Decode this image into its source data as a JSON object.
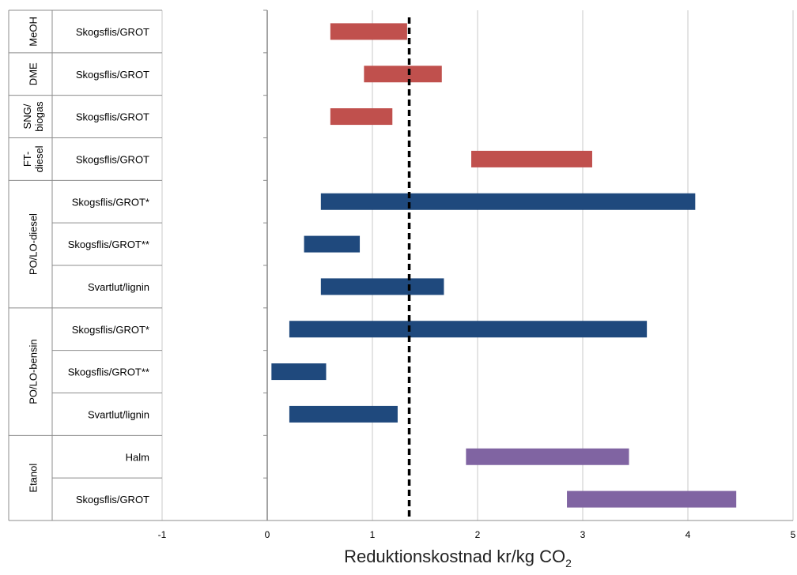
{
  "chart_data": {
    "type": "bar",
    "orientation": "horizontal-range",
    "xlabel": "Reduktionskostnad kr/kg CO",
    "xlabel_subscript": "2",
    "xlim": [
      -1,
      5
    ],
    "xticks": [
      "-1",
      "0",
      "1",
      "2",
      "3",
      "4",
      "5"
    ],
    "grid": "vertical",
    "reference_line": {
      "x": 1.35,
      "style": "dashed",
      "color": "#000000"
    },
    "groups": [
      {
        "lines": [
          "MeOH"
        ],
        "rows": [
          0
        ]
      },
      {
        "lines": [
          "DME"
        ],
        "rows": [
          1
        ]
      },
      {
        "lines": [
          "SNG/",
          "biogas"
        ],
        "rows": [
          2
        ]
      },
      {
        "lines": [
          "FT-",
          "diesel"
        ],
        "rows": [
          3
        ]
      },
      {
        "lines": [
          "PO/LO-diesel"
        ],
        "rows": [
          4,
          5,
          6
        ]
      },
      {
        "lines": [
          "PO/LO-bensin"
        ],
        "rows": [
          7,
          8,
          9
        ]
      },
      {
        "lines": [
          "Etanol"
        ],
        "rows": [
          10,
          11
        ]
      }
    ],
    "rows": [
      {
        "label": "Skogsflis/GROT",
        "low": 0.6,
        "high": 1.33,
        "color": "#c0504d"
      },
      {
        "label": "Skogsflis/GROT",
        "low": 0.92,
        "high": 1.66,
        "color": "#c0504d"
      },
      {
        "label": "Skogsflis/GROT",
        "low": 0.6,
        "high": 1.19,
        "color": "#c0504d"
      },
      {
        "label": "Skogsflis/GROT",
        "low": 1.94,
        "high": 3.09,
        "color": "#c0504d"
      },
      {
        "label": "Skogsflis/GROT*",
        "low": 0.51,
        "high": 4.07,
        "color": "#1f497d"
      },
      {
        "label": "Skogsflis/GROT**",
        "low": 0.35,
        "high": 0.88,
        "color": "#1f497d"
      },
      {
        "label": "Svartlut/lignin",
        "low": 0.51,
        "high": 1.68,
        "color": "#1f497d"
      },
      {
        "label": "Skogsflis/GROT*",
        "low": 0.21,
        "high": 3.61,
        "color": "#1f497d"
      },
      {
        "label": "Skogsflis/GROT**",
        "low": 0.04,
        "high": 0.56,
        "color": "#1f497d"
      },
      {
        "label": "Svartlut/lignin",
        "low": 0.21,
        "high": 1.24,
        "color": "#1f497d"
      },
      {
        "label": "Halm",
        "low": 1.89,
        "high": 3.44,
        "color": "#8064a2"
      },
      {
        "label": "Skogsflis/GROT",
        "low": 2.85,
        "high": 4.46,
        "color": "#8064a2"
      }
    ]
  }
}
